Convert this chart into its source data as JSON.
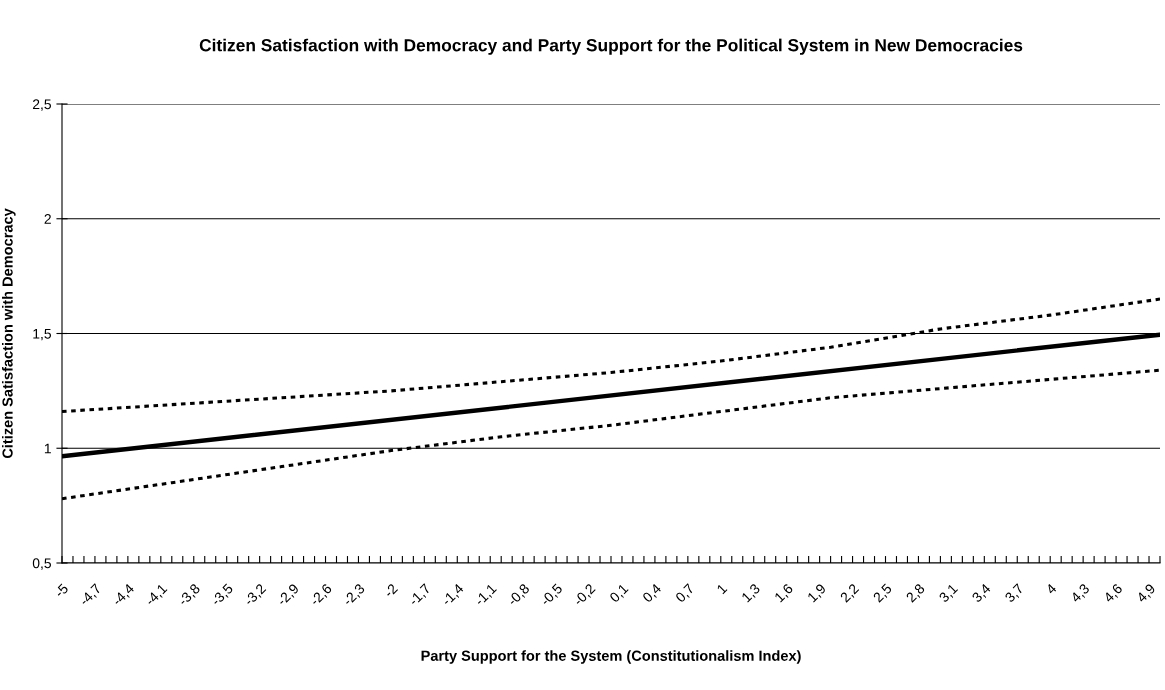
{
  "chart_data": {
    "type": "line",
    "title": "Citizen Satisfaction with Democracy and Party Support for the Political System in New Democracies",
    "xlabel": "Party Support for the System (Constitutionalism Index)",
    "ylabel": "Citizen Satisfaction with Democracy",
    "series": [
      {
        "color": "#000000",
        "line_style": "solid",
        "x": [
          -5,
          5
        ],
        "values": [
          0.965,
          1.495
        ]
      },
      {
        "color": "#000000",
        "line_style": "dotted",
        "x": [
          -5,
          -4,
          -3,
          -2,
          -1,
          0,
          1,
          2,
          3,
          4,
          5
        ],
        "values": [
          1.16,
          1.19,
          1.22,
          1.25,
          1.29,
          1.33,
          1.38,
          1.44,
          1.52,
          1.58,
          1.65
        ]
      },
      {
        "color": "#000000",
        "line_style": "dotted",
        "x": [
          -5,
          -4,
          -3,
          -2,
          -1,
          0,
          1,
          2,
          3,
          4,
          5
        ],
        "values": [
          0.78,
          0.85,
          0.92,
          0.99,
          1.05,
          1.1,
          1.16,
          1.22,
          1.26,
          1.3,
          1.34
        ]
      }
    ],
    "xlim": [
      -5,
      5
    ],
    "ylim": [
      0.5,
      2.5
    ],
    "yticks": [
      {
        "value": 0.5,
        "label": "0,5"
      },
      1,
      {
        "value": 1.5,
        "label": "1,5"
      },
      2,
      {
        "value": 2.5,
        "label": "2,5"
      }
    ],
    "xticks": [
      -5,
      {
        "value": -4.9,
        "label": null
      },
      {
        "value": -4.8,
        "label": null
      },
      {
        "value": -4.7,
        "label": "-4,7"
      },
      {
        "value": -4.6,
        "label": null
      },
      {
        "value": -4.5,
        "label": null
      },
      {
        "value": -4.4,
        "label": "-4,4"
      },
      {
        "value": -4.3,
        "label": null
      },
      {
        "value": -4.2,
        "label": null
      },
      {
        "value": -4.1,
        "label": "-4,1"
      },
      {
        "value": -4,
        "label": null
      },
      {
        "value": -3.9,
        "label": null
      },
      {
        "value": -3.8,
        "label": "-3,8"
      },
      {
        "value": -3.7,
        "label": null
      },
      {
        "value": -3.6,
        "label": null
      },
      {
        "value": -3.5,
        "label": "-3,5"
      },
      {
        "value": -3.4,
        "label": null
      },
      {
        "value": -3.3,
        "label": null
      },
      {
        "value": -3.2,
        "label": "-3,2"
      },
      {
        "value": -3.1,
        "label": null
      },
      {
        "value": -3,
        "label": null
      },
      {
        "value": -2.9,
        "label": "-2,9"
      },
      {
        "value": -2.8,
        "label": null
      },
      {
        "value": -2.7,
        "label": null
      },
      {
        "value": -2.6,
        "label": "-2,6"
      },
      {
        "value": -2.5,
        "label": null
      },
      {
        "value": -2.4,
        "label": null
      },
      {
        "value": -2.3,
        "label": "-2,3"
      },
      {
        "value": -2.2,
        "label": null
      },
      {
        "value": -2.1,
        "label": null
      },
      -2,
      {
        "value": -1.9,
        "label": null
      },
      {
        "value": -1.8,
        "label": null
      },
      {
        "value": -1.7,
        "label": "-1,7"
      },
      {
        "value": -1.6,
        "label": null
      },
      {
        "value": -1.5,
        "label": null
      },
      {
        "value": -1.4,
        "label": "-1,4"
      },
      {
        "value": -1.3,
        "label": null
      },
      {
        "value": -1.2,
        "label": null
      },
      {
        "value": -1.1,
        "label": "-1,1"
      },
      {
        "value": -1,
        "label": null
      },
      {
        "value": -0.9,
        "label": null
      },
      {
        "value": -0.8,
        "label": "-0,8"
      },
      {
        "value": -0.7,
        "label": null
      },
      {
        "value": -0.6,
        "label": null
      },
      {
        "value": -0.5,
        "label": "-0,5"
      },
      {
        "value": -0.4,
        "label": null
      },
      {
        "value": -0.3,
        "label": null
      },
      {
        "value": -0.2,
        "label": "-0,2"
      },
      {
        "value": -0.1,
        "label": null
      },
      {
        "value": 0,
        "label": null
      },
      {
        "value": 0.1,
        "label": "0,1"
      },
      {
        "value": 0.2,
        "label": null
      },
      {
        "value": 0.3,
        "label": null
      },
      {
        "value": 0.4,
        "label": "0,4"
      },
      {
        "value": 0.5,
        "label": null
      },
      {
        "value": 0.6,
        "label": null
      },
      {
        "value": 0.7,
        "label": "0,7"
      },
      {
        "value": 0.8,
        "label": null
      },
      {
        "value": 0.9,
        "label": null
      },
      1,
      {
        "value": 1.1,
        "label": null
      },
      {
        "value": 1.2,
        "label": null
      },
      {
        "value": 1.3,
        "label": "1,3"
      },
      {
        "value": 1.4,
        "label": null
      },
      {
        "value": 1.5,
        "label": null
      },
      {
        "value": 1.6,
        "label": "1,6"
      },
      {
        "value": 1.7,
        "label": null
      },
      {
        "value": 1.8,
        "label": null
      },
      {
        "value": 1.9,
        "label": "1,9"
      },
      {
        "value": 2,
        "label": null
      },
      {
        "value": 2.1,
        "label": null
      },
      {
        "value": 2.2,
        "label": "2,2"
      },
      {
        "value": 2.3,
        "label": null
      },
      {
        "value": 2.4,
        "label": null
      },
      {
        "value": 2.5,
        "label": "2,5"
      },
      {
        "value": 2.6,
        "label": null
      },
      {
        "value": 2.7,
        "label": null
      },
      {
        "value": 2.8,
        "label": "2,8"
      },
      {
        "value": 2.9,
        "label": null
      },
      {
        "value": 3,
        "label": null
      },
      {
        "value": 3.1,
        "label": "3,1"
      },
      {
        "value": 3.2,
        "label": null
      },
      {
        "value": 3.3,
        "label": null
      },
      {
        "value": 3.4,
        "label": "3,4"
      },
      {
        "value": 3.5,
        "label": null
      },
      {
        "value": 3.6,
        "label": null
      },
      {
        "value": 3.7,
        "label": "3,7"
      },
      {
        "value": 3.8,
        "label": null
      },
      {
        "value": 3.9,
        "label": null
      },
      4,
      {
        "value": 4.1,
        "label": null
      },
      {
        "value": 4.2,
        "label": null
      },
      {
        "value": 4.3,
        "label": "4,3"
      },
      {
        "value": 4.4,
        "label": null
      },
      {
        "value": 4.5,
        "label": null
      },
      {
        "value": 4.6,
        "label": "4,6"
      },
      {
        "value": 4.7,
        "label": null
      },
      {
        "value": 4.8,
        "label": null
      },
      {
        "value": 4.9,
        "label": "4,9"
      },
      {
        "value": 5,
        "label": null
      }
    ],
    "grid": "y",
    "marker": "none"
  }
}
